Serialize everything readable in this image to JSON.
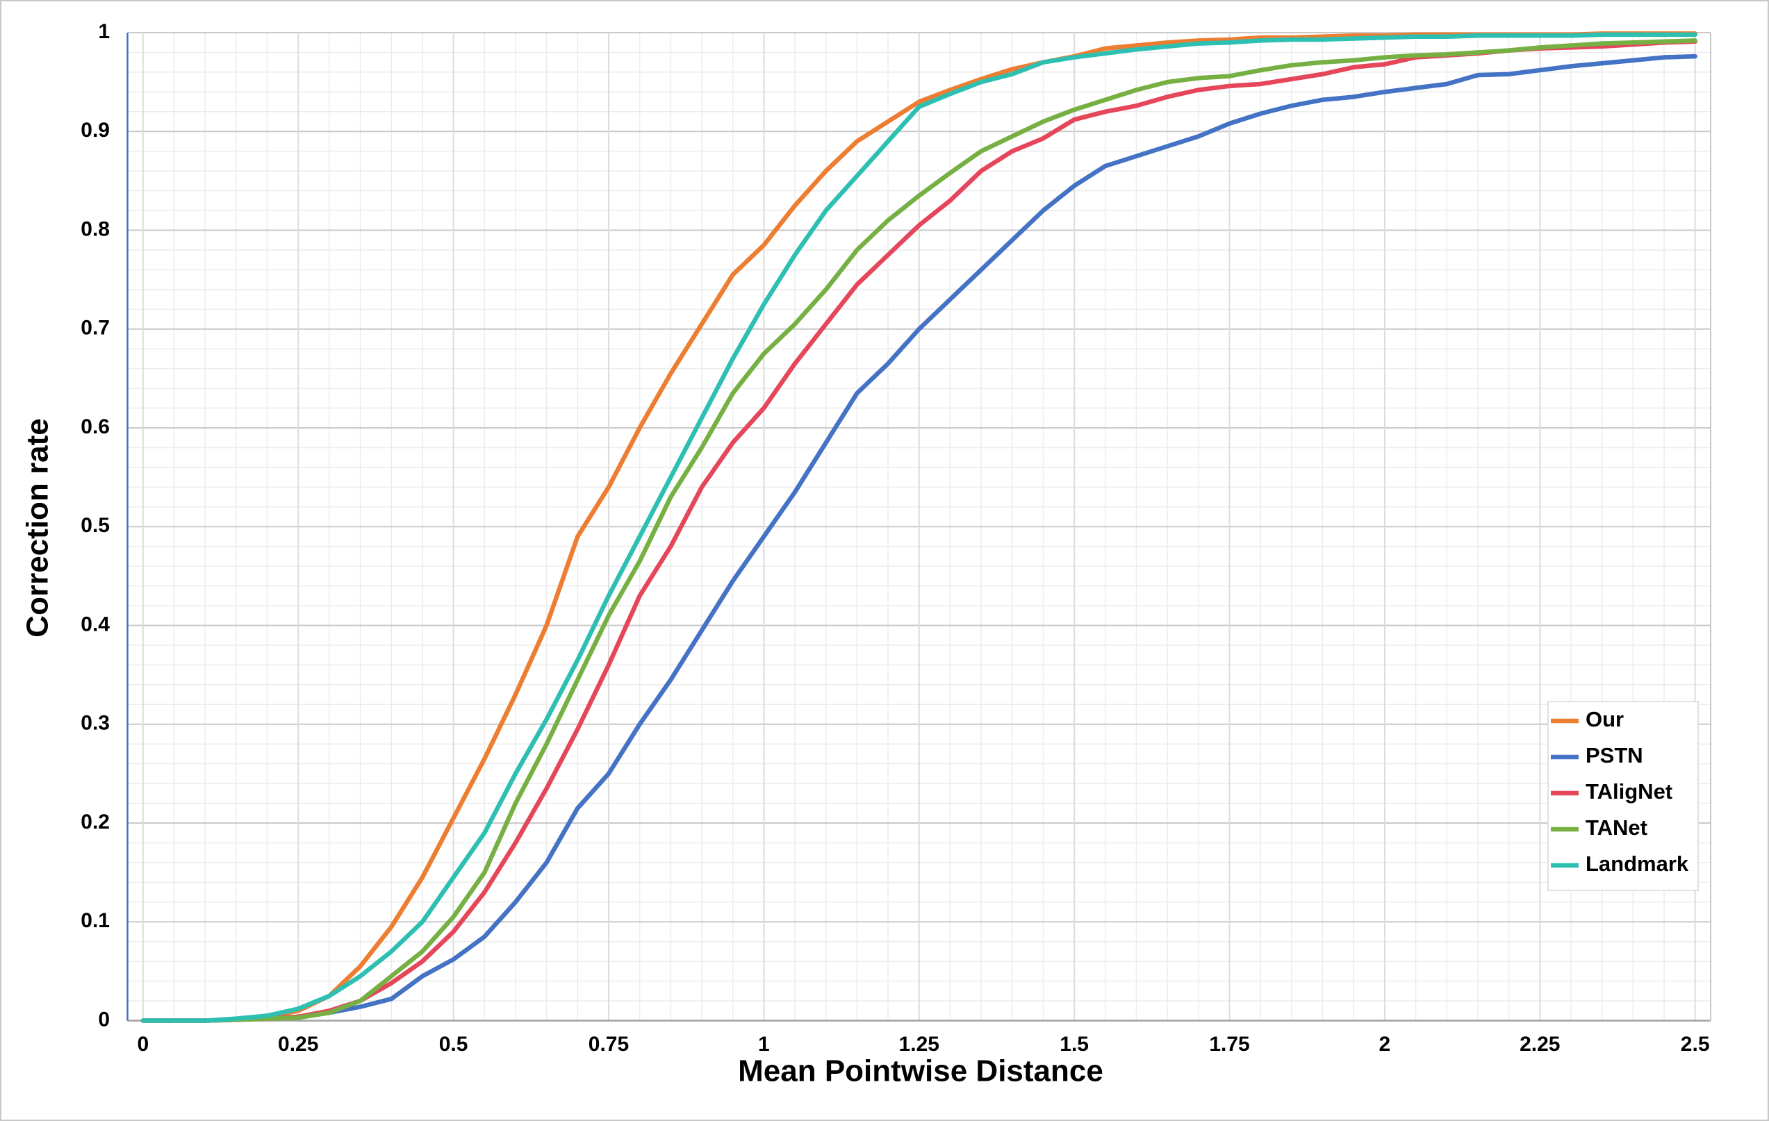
{
  "chart_data": {
    "type": "line",
    "xlabel": "Mean Pointwise Distance",
    "ylabel": "Correction rate",
    "x": [
      0,
      0.05,
      0.1,
      0.15,
      0.2,
      0.25,
      0.3,
      0.35,
      0.4,
      0.45,
      0.5,
      0.55,
      0.6,
      0.65,
      0.7,
      0.75,
      0.8,
      0.85,
      0.9,
      0.95,
      1,
      1.05,
      1.1,
      1.15,
      1.2,
      1.25,
      1.3,
      1.35,
      1.4,
      1.45,
      1.5,
      1.55,
      1.6,
      1.65,
      1.7,
      1.75,
      1.8,
      1.85,
      1.9,
      1.95,
      2,
      2.05,
      2.1,
      2.15,
      2.2,
      2.25,
      2.3,
      2.35,
      2.4,
      2.45,
      2.5
    ],
    "series": [
      {
        "name": "Our",
        "color": "#ed7d31",
        "values": [
          0,
          0,
          0,
          0.001,
          0.004,
          0.01,
          0.025,
          0.055,
          0.095,
          0.145,
          0.205,
          0.265,
          0.33,
          0.4,
          0.49,
          0.54,
          0.6,
          0.655,
          0.705,
          0.755,
          0.785,
          0.825,
          0.86,
          0.89,
          0.91,
          0.93,
          0.942,
          0.953,
          0.963,
          0.97,
          0.976,
          0.984,
          0.987,
          0.99,
          0.992,
          0.993,
          0.995,
          0.995,
          0.996,
          0.997,
          0.997,
          0.998,
          0.998,
          0.998,
          0.998,
          0.998,
          0.998,
          0.999,
          0.999,
          0.999,
          0.999
        ]
      },
      {
        "name": "PSTN",
        "color": "#4472c4",
        "values": [
          0,
          0,
          0,
          0.001,
          0.002,
          0.004,
          0.008,
          0.014,
          0.022,
          0.045,
          0.062,
          0.085,
          0.12,
          0.16,
          0.215,
          0.25,
          0.3,
          0.345,
          0.395,
          0.445,
          0.49,
          0.535,
          0.585,
          0.635,
          0.665,
          0.7,
          0.73,
          0.76,
          0.79,
          0.82,
          0.845,
          0.865,
          0.875,
          0.885,
          0.895,
          0.908,
          0.918,
          0.926,
          0.932,
          0.935,
          0.94,
          0.944,
          0.948,
          0.957,
          0.958,
          0.962,
          0.966,
          0.969,
          0.972,
          0.975,
          0.976
        ]
      },
      {
        "name": "TAligNet",
        "color": "#e5465a",
        "values": [
          0,
          0,
          0,
          0.001,
          0.002,
          0.004,
          0.01,
          0.02,
          0.038,
          0.06,
          0.09,
          0.13,
          0.18,
          0.235,
          0.295,
          0.36,
          0.43,
          0.48,
          0.54,
          0.585,
          0.62,
          0.665,
          0.705,
          0.745,
          0.775,
          0.805,
          0.83,
          0.86,
          0.88,
          0.893,
          0.912,
          0.92,
          0.926,
          0.935,
          0.942,
          0.946,
          0.948,
          0.953,
          0.958,
          0.965,
          0.968,
          0.975,
          0.977,
          0.979,
          0.982,
          0.984,
          0.985,
          0.986,
          0.988,
          0.99,
          0.991
        ]
      },
      {
        "name": "TANet",
        "color": "#76b043",
        "values": [
          0,
          0,
          0,
          0.001,
          0.002,
          0.003,
          0.008,
          0.02,
          0.045,
          0.07,
          0.105,
          0.15,
          0.22,
          0.28,
          0.345,
          0.41,
          0.465,
          0.53,
          0.58,
          0.635,
          0.675,
          0.705,
          0.74,
          0.78,
          0.81,
          0.835,
          0.858,
          0.88,
          0.895,
          0.91,
          0.922,
          0.932,
          0.942,
          0.95,
          0.954,
          0.956,
          0.962,
          0.967,
          0.97,
          0.972,
          0.975,
          0.977,
          0.978,
          0.98,
          0.982,
          0.985,
          0.987,
          0.989,
          0.99,
          0.991,
          0.992
        ]
      },
      {
        "name": "Landmark",
        "color": "#2ebfb3",
        "values": [
          0,
          0,
          0,
          0.002,
          0.005,
          0.012,
          0.025,
          0.045,
          0.07,
          0.1,
          0.145,
          0.19,
          0.25,
          0.305,
          0.365,
          0.43,
          0.49,
          0.55,
          0.61,
          0.67,
          0.725,
          0.775,
          0.82,
          0.855,
          0.89,
          0.925,
          0.938,
          0.95,
          0.958,
          0.97,
          0.975,
          0.979,
          0.983,
          0.986,
          0.989,
          0.99,
          0.992,
          0.993,
          0.993,
          0.994,
          0.995,
          0.996,
          0.996,
          0.997,
          0.997,
          0.997,
          0.997,
          0.998,
          0.998,
          0.998,
          0.998
        ]
      }
    ],
    "xlim": [
      -0.025,
      2.525
    ],
    "xticks": [
      0,
      0.25,
      0.5,
      0.75,
      1,
      1.25,
      1.5,
      1.75,
      2,
      2.25,
      2.5
    ],
    "ylim": [
      0,
      1
    ],
    "yticks": [
      0,
      0.1,
      0.2,
      0.3,
      0.4,
      0.5,
      0.6,
      0.7,
      0.8,
      0.9,
      1
    ],
    "grid": true,
    "legend": "lower right"
  }
}
